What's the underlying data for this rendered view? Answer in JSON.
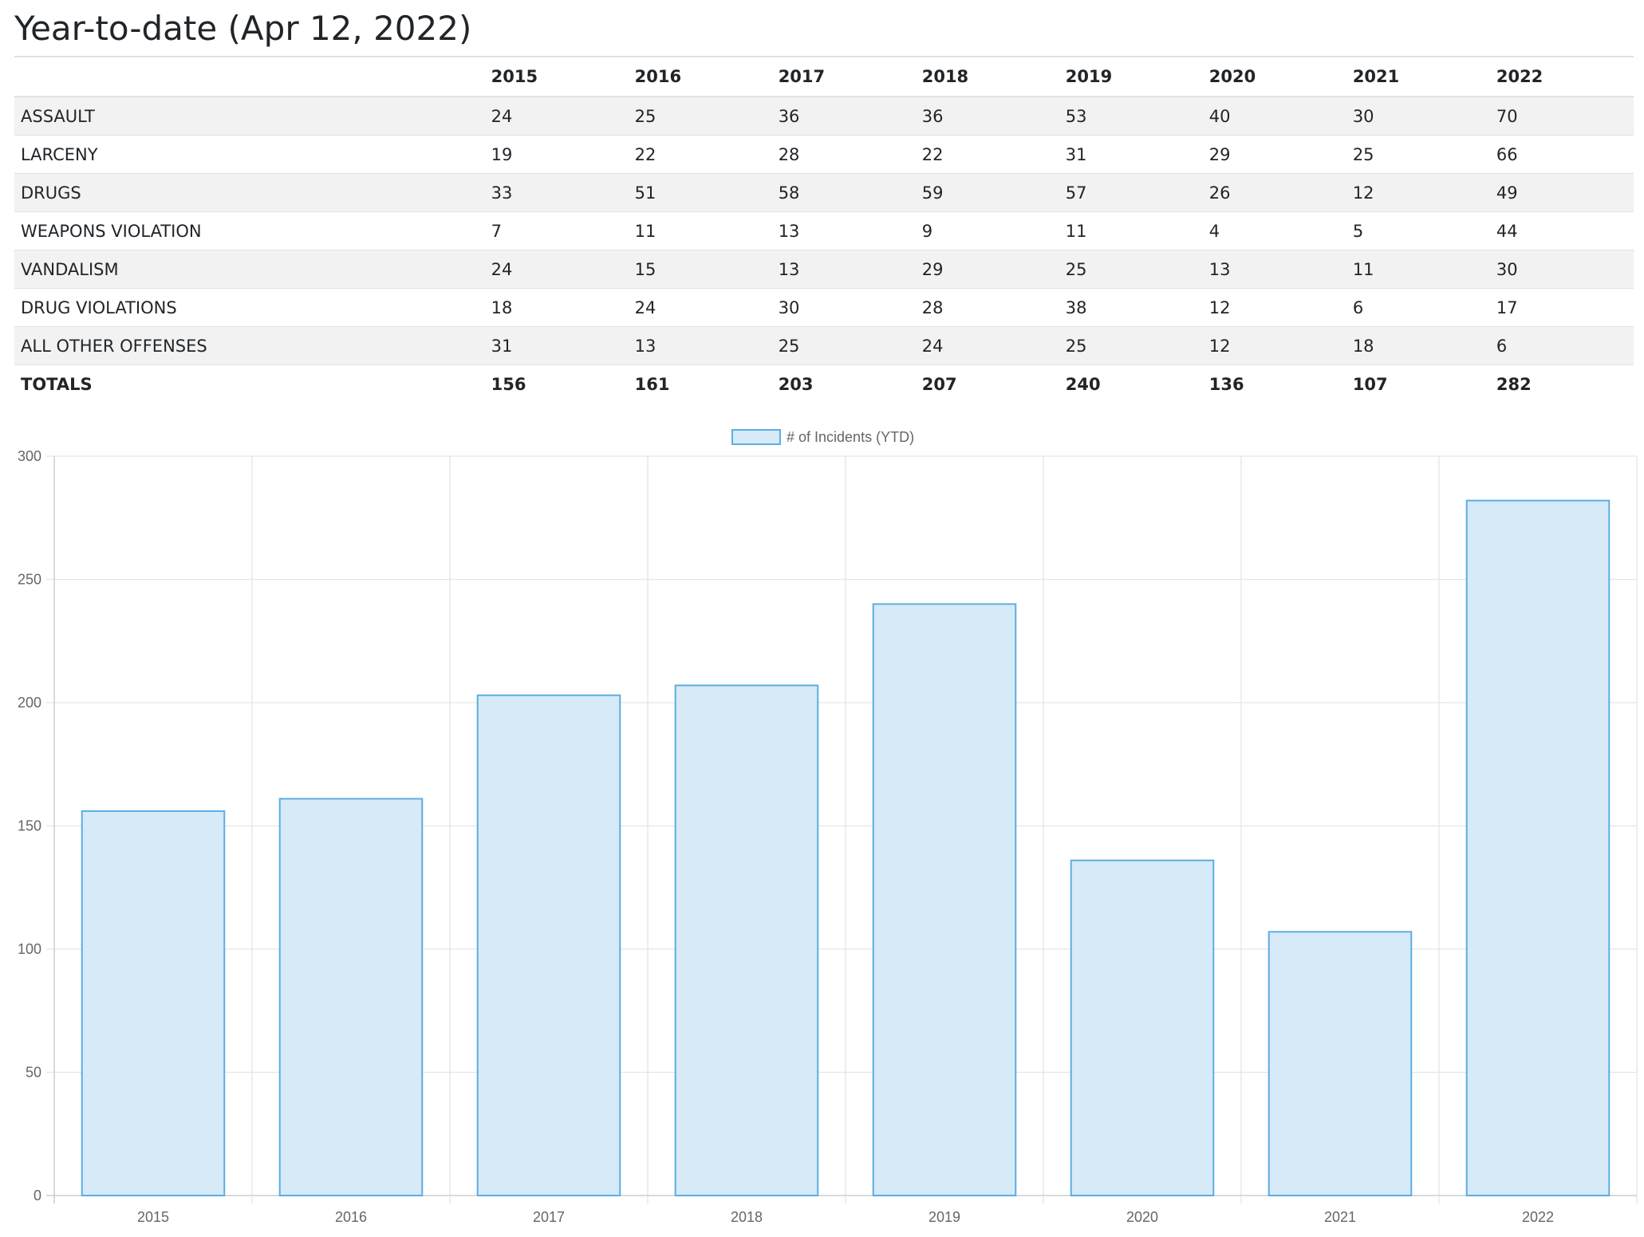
{
  "page": {
    "title": "Year-to-date (Apr 12, 2022)"
  },
  "table": {
    "columns": [
      "",
      "2015",
      "2016",
      "2017",
      "2018",
      "2019",
      "2020",
      "2021",
      "2022"
    ],
    "rows": [
      {
        "label": "ASSAULT",
        "values": [
          "24",
          "25",
          "36",
          "36",
          "53",
          "40",
          "30",
          "70"
        ]
      },
      {
        "label": "LARCENY",
        "values": [
          "19",
          "22",
          "28",
          "22",
          "31",
          "29",
          "25",
          "66"
        ]
      },
      {
        "label": "DRUGS",
        "values": [
          "33",
          "51",
          "58",
          "59",
          "57",
          "26",
          "12",
          "49"
        ]
      },
      {
        "label": "WEAPONS VIOLATION",
        "values": [
          "7",
          "11",
          "13",
          "9",
          "11",
          "4",
          "5",
          "44"
        ]
      },
      {
        "label": "VANDALISM",
        "values": [
          "24",
          "15",
          "13",
          "29",
          "25",
          "13",
          "11",
          "30"
        ]
      },
      {
        "label": "DRUG VIOLATIONS",
        "values": [
          "18",
          "24",
          "30",
          "28",
          "38",
          "12",
          "6",
          "17"
        ]
      },
      {
        "label": "ALL OTHER OFFENSES",
        "values": [
          "31",
          "13",
          "25",
          "24",
          "25",
          "12",
          "18",
          "6"
        ]
      }
    ],
    "totals": {
      "label": "TOTALS",
      "values": [
        "156",
        "161",
        "203",
        "207",
        "240",
        "136",
        "107",
        "282"
      ]
    }
  },
  "chart_data": {
    "type": "bar",
    "categories": [
      "2015",
      "2016",
      "2017",
      "2018",
      "2019",
      "2020",
      "2021",
      "2022"
    ],
    "series": [
      {
        "name": "# of Incidents (YTD)",
        "values": [
          156,
          161,
          203,
          207,
          240,
          136,
          107,
          282
        ]
      }
    ],
    "title": "",
    "xlabel": "",
    "ylabel": "",
    "ylim": [
      0,
      300
    ],
    "yticks": [
      0,
      50,
      100,
      150,
      200,
      250,
      300
    ],
    "grid": true,
    "legend": "top-center",
    "colors": {
      "fill": "#d6eaf8",
      "stroke": "#5dade2",
      "grid": "#e5e5e5",
      "tick_text": "#666666"
    }
  }
}
